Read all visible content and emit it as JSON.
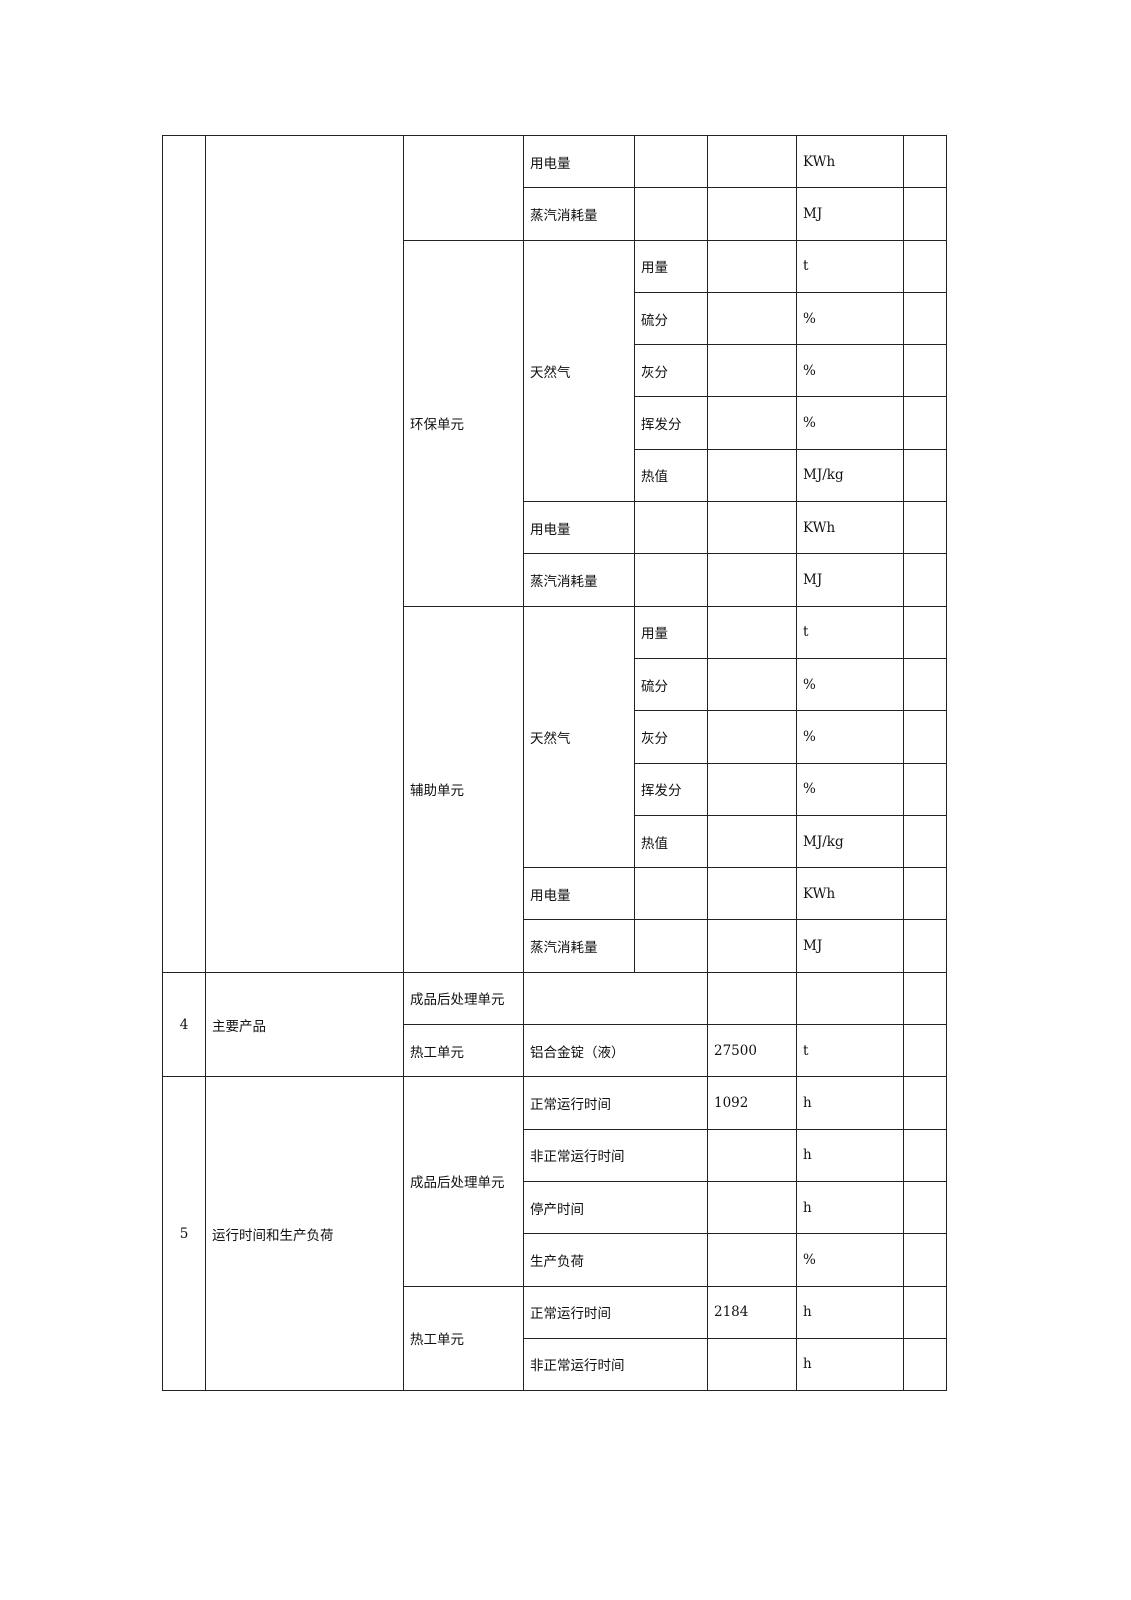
{
  "continuation": {
    "units": [
      {
        "name": "",
        "items": [
          {
            "name": "用电量",
            "value": "",
            "unit": "KWh",
            "remark": ""
          },
          {
            "name": "蒸汽消耗量",
            "value": "",
            "unit": "MJ",
            "remark": ""
          }
        ]
      },
      {
        "name": "环保单元",
        "fuel": {
          "name": "天然气",
          "props": [
            {
              "name": "用量",
              "value": "",
              "unit": "t",
              "remark": ""
            },
            {
              "name": "硫分",
              "value": "",
              "unit": "%",
              "remark": ""
            },
            {
              "name": "灰分",
              "value": "",
              "unit": "%",
              "remark": ""
            },
            {
              "name": "挥发分",
              "value": "",
              "unit": "%",
              "remark": ""
            },
            {
              "name": "热值",
              "value": "",
              "unit": "MJ/kg",
              "remark": ""
            }
          ]
        },
        "items": [
          {
            "name": "用电量",
            "value": "",
            "unit": "KWh",
            "remark": ""
          },
          {
            "name": "蒸汽消耗量",
            "value": "",
            "unit": "MJ",
            "remark": ""
          }
        ]
      },
      {
        "name": "辅助单元",
        "fuel": {
          "name": "天然气",
          "props": [
            {
              "name": "用量",
              "value": "",
              "unit": "t",
              "remark": ""
            },
            {
              "name": "硫分",
              "value": "",
              "unit": "%",
              "remark": ""
            },
            {
              "name": "灰分",
              "value": "",
              "unit": "%",
              "remark": ""
            },
            {
              "name": "挥发分",
              "value": "",
              "unit": "%",
              "remark": ""
            },
            {
              "name": "热值",
              "value": "",
              "unit": "MJ/kg",
              "remark": ""
            }
          ]
        },
        "items": [
          {
            "name": "用电量",
            "value": "",
            "unit": "KWh",
            "remark": ""
          },
          {
            "name": "蒸汽消耗量",
            "value": "",
            "unit": "MJ",
            "remark": ""
          }
        ]
      }
    ]
  },
  "sections": [
    {
      "no": "4",
      "title": "主要产品",
      "units": [
        {
          "name": "成品后处理单元",
          "items": [
            {
              "name": "",
              "value": "",
              "unit": "",
              "remark": ""
            }
          ]
        },
        {
          "name": "热工单元",
          "items": [
            {
              "name": "铝合金锭（液）",
              "value": "27500",
              "unit": "t",
              "remark": ""
            }
          ]
        }
      ]
    },
    {
      "no": "5",
      "title": "运行时间和生产负荷",
      "units": [
        {
          "name": "成品后处理单元",
          "items": [
            {
              "name": "正常运行时间",
              "value": "1092",
              "unit": "h",
              "remark": ""
            },
            {
              "name": "非正常运行时间",
              "value": "",
              "unit": "h",
              "remark": ""
            },
            {
              "name": "停产时间",
              "value": "",
              "unit": "h",
              "remark": ""
            },
            {
              "name": "生产负荷",
              "value": "",
              "unit": "%",
              "remark": ""
            }
          ]
        },
        {
          "name": "热工单元",
          "items": [
            {
              "name": "正常运行时间",
              "value": "2184",
              "unit": "h",
              "remark": ""
            },
            {
              "name": "非正常运行时间",
              "value": "",
              "unit": "h",
              "remark": ""
            }
          ]
        }
      ]
    }
  ]
}
